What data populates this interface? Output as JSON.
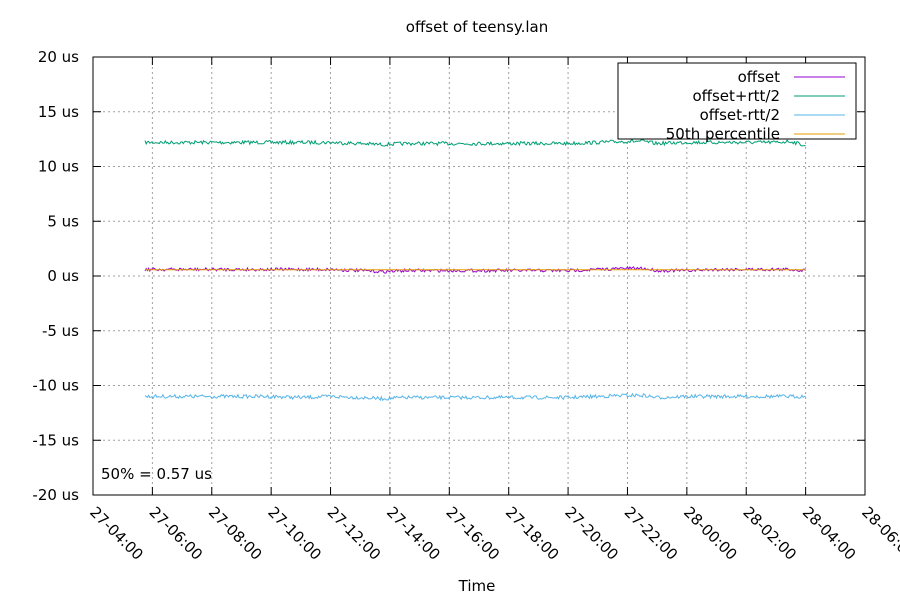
{
  "chart_data": {
    "type": "line",
    "title": "offset of teensy.lan",
    "xlabel": "Time",
    "ylabel": "",
    "y_unit": "us",
    "ylim": [
      -20,
      20
    ],
    "yticks": [
      {
        "value": 20,
        "label": "20 us"
      },
      {
        "value": 15,
        "label": "15 us"
      },
      {
        "value": 10,
        "label": "10 us"
      },
      {
        "value": 5,
        "label": "5 us"
      },
      {
        "value": 0,
        "label": "0 us"
      },
      {
        "value": -5,
        "label": "-5 us"
      },
      {
        "value": -10,
        "label": "-10 us"
      },
      {
        "value": -15,
        "label": "-15 us"
      },
      {
        "value": -20,
        "label": "-20 us"
      }
    ],
    "xlim": [
      "27-04:00",
      "28-06:00"
    ],
    "xticks": [
      "27-04:00",
      "27-06:00",
      "27-08:00",
      "27-10:00",
      "27-12:00",
      "27-14:00",
      "27-16:00",
      "27-18:00",
      "27-20:00",
      "27-22:00",
      "28-00:00",
      "28-02:00",
      "28-04:00",
      "28-06:00"
    ],
    "grid": true,
    "legend_position": "top-right",
    "annotation": "50% = 0.57 us",
    "series": [
      {
        "name": "offset",
        "color": "#9400d3",
        "x": [
          "27-05:45",
          "27-07:00",
          "27-08:00",
          "27-09:00",
          "27-10:00",
          "27-11:00",
          "27-12:00",
          "27-13:00",
          "27-13:45",
          "27-14:30",
          "27-15:00",
          "27-16:00",
          "27-17:00",
          "27-18:00",
          "27-19:00",
          "27-20:00",
          "27-21:00",
          "27-22:00",
          "27-22:30",
          "27-23:00",
          "28-00:00",
          "28-01:00",
          "28-02:00",
          "28-03:00",
          "28-03:30",
          "28-04:00"
        ],
        "values": [
          0.6,
          0.6,
          0.6,
          0.6,
          0.6,
          0.6,
          0.6,
          0.5,
          0.4,
          0.5,
          0.5,
          0.5,
          0.5,
          0.5,
          0.5,
          0.5,
          0.6,
          0.7,
          0.7,
          0.5,
          0.5,
          0.6,
          0.6,
          0.6,
          0.6,
          0.5
        ]
      },
      {
        "name": "offset+rtt/2",
        "color": "#009e73",
        "x": [
          "27-05:45",
          "27-07:00",
          "27-08:00",
          "27-09:00",
          "27-10:00",
          "27-11:00",
          "27-12:00",
          "27-13:00",
          "27-13:45",
          "27-14:30",
          "27-15:00",
          "27-16:00",
          "27-17:00",
          "27-18:00",
          "27-19:00",
          "27-20:00",
          "27-21:00",
          "27-22:00",
          "27-22:30",
          "27-23:00",
          "28-00:00",
          "28-01:00",
          "28-02:00",
          "28-03:00",
          "28-03:30",
          "28-04:00"
        ],
        "values": [
          12.2,
          12.2,
          12.2,
          12.2,
          12.2,
          12.2,
          12.2,
          12.1,
          12.0,
          12.1,
          12.1,
          12.1,
          12.1,
          12.1,
          12.1,
          12.1,
          12.2,
          12.3,
          12.3,
          12.1,
          12.2,
          12.2,
          12.2,
          12.2,
          12.3,
          11.9
        ]
      },
      {
        "name": "offset-rtt/2",
        "color": "#56b4e9",
        "x": [
          "27-05:45",
          "27-07:00",
          "27-08:00",
          "27-09:00",
          "27-10:00",
          "27-11:00",
          "27-12:00",
          "27-13:00",
          "27-13:45",
          "27-14:30",
          "27-15:00",
          "27-16:00",
          "27-17:00",
          "27-18:00",
          "27-19:00",
          "27-20:00",
          "27-21:00",
          "27-22:00",
          "27-22:30",
          "27-23:00",
          "28-00:00",
          "28-01:00",
          "28-02:00",
          "28-03:00",
          "28-03:30",
          "28-04:00"
        ],
        "values": [
          -11.0,
          -11.0,
          -11.0,
          -11.0,
          -11.0,
          -11.1,
          -11.0,
          -11.1,
          -11.2,
          -11.1,
          -11.1,
          -11.1,
          -11.1,
          -11.1,
          -11.1,
          -11.1,
          -11.0,
          -10.9,
          -10.9,
          -11.1,
          -11.0,
          -11.0,
          -11.0,
          -11.0,
          -11.0,
          -11.0
        ]
      },
      {
        "name": "50th percentile",
        "color": "#e69f00",
        "x": [
          "27-05:45",
          "28-04:00"
        ],
        "values": [
          0.57,
          0.57
        ]
      }
    ]
  }
}
